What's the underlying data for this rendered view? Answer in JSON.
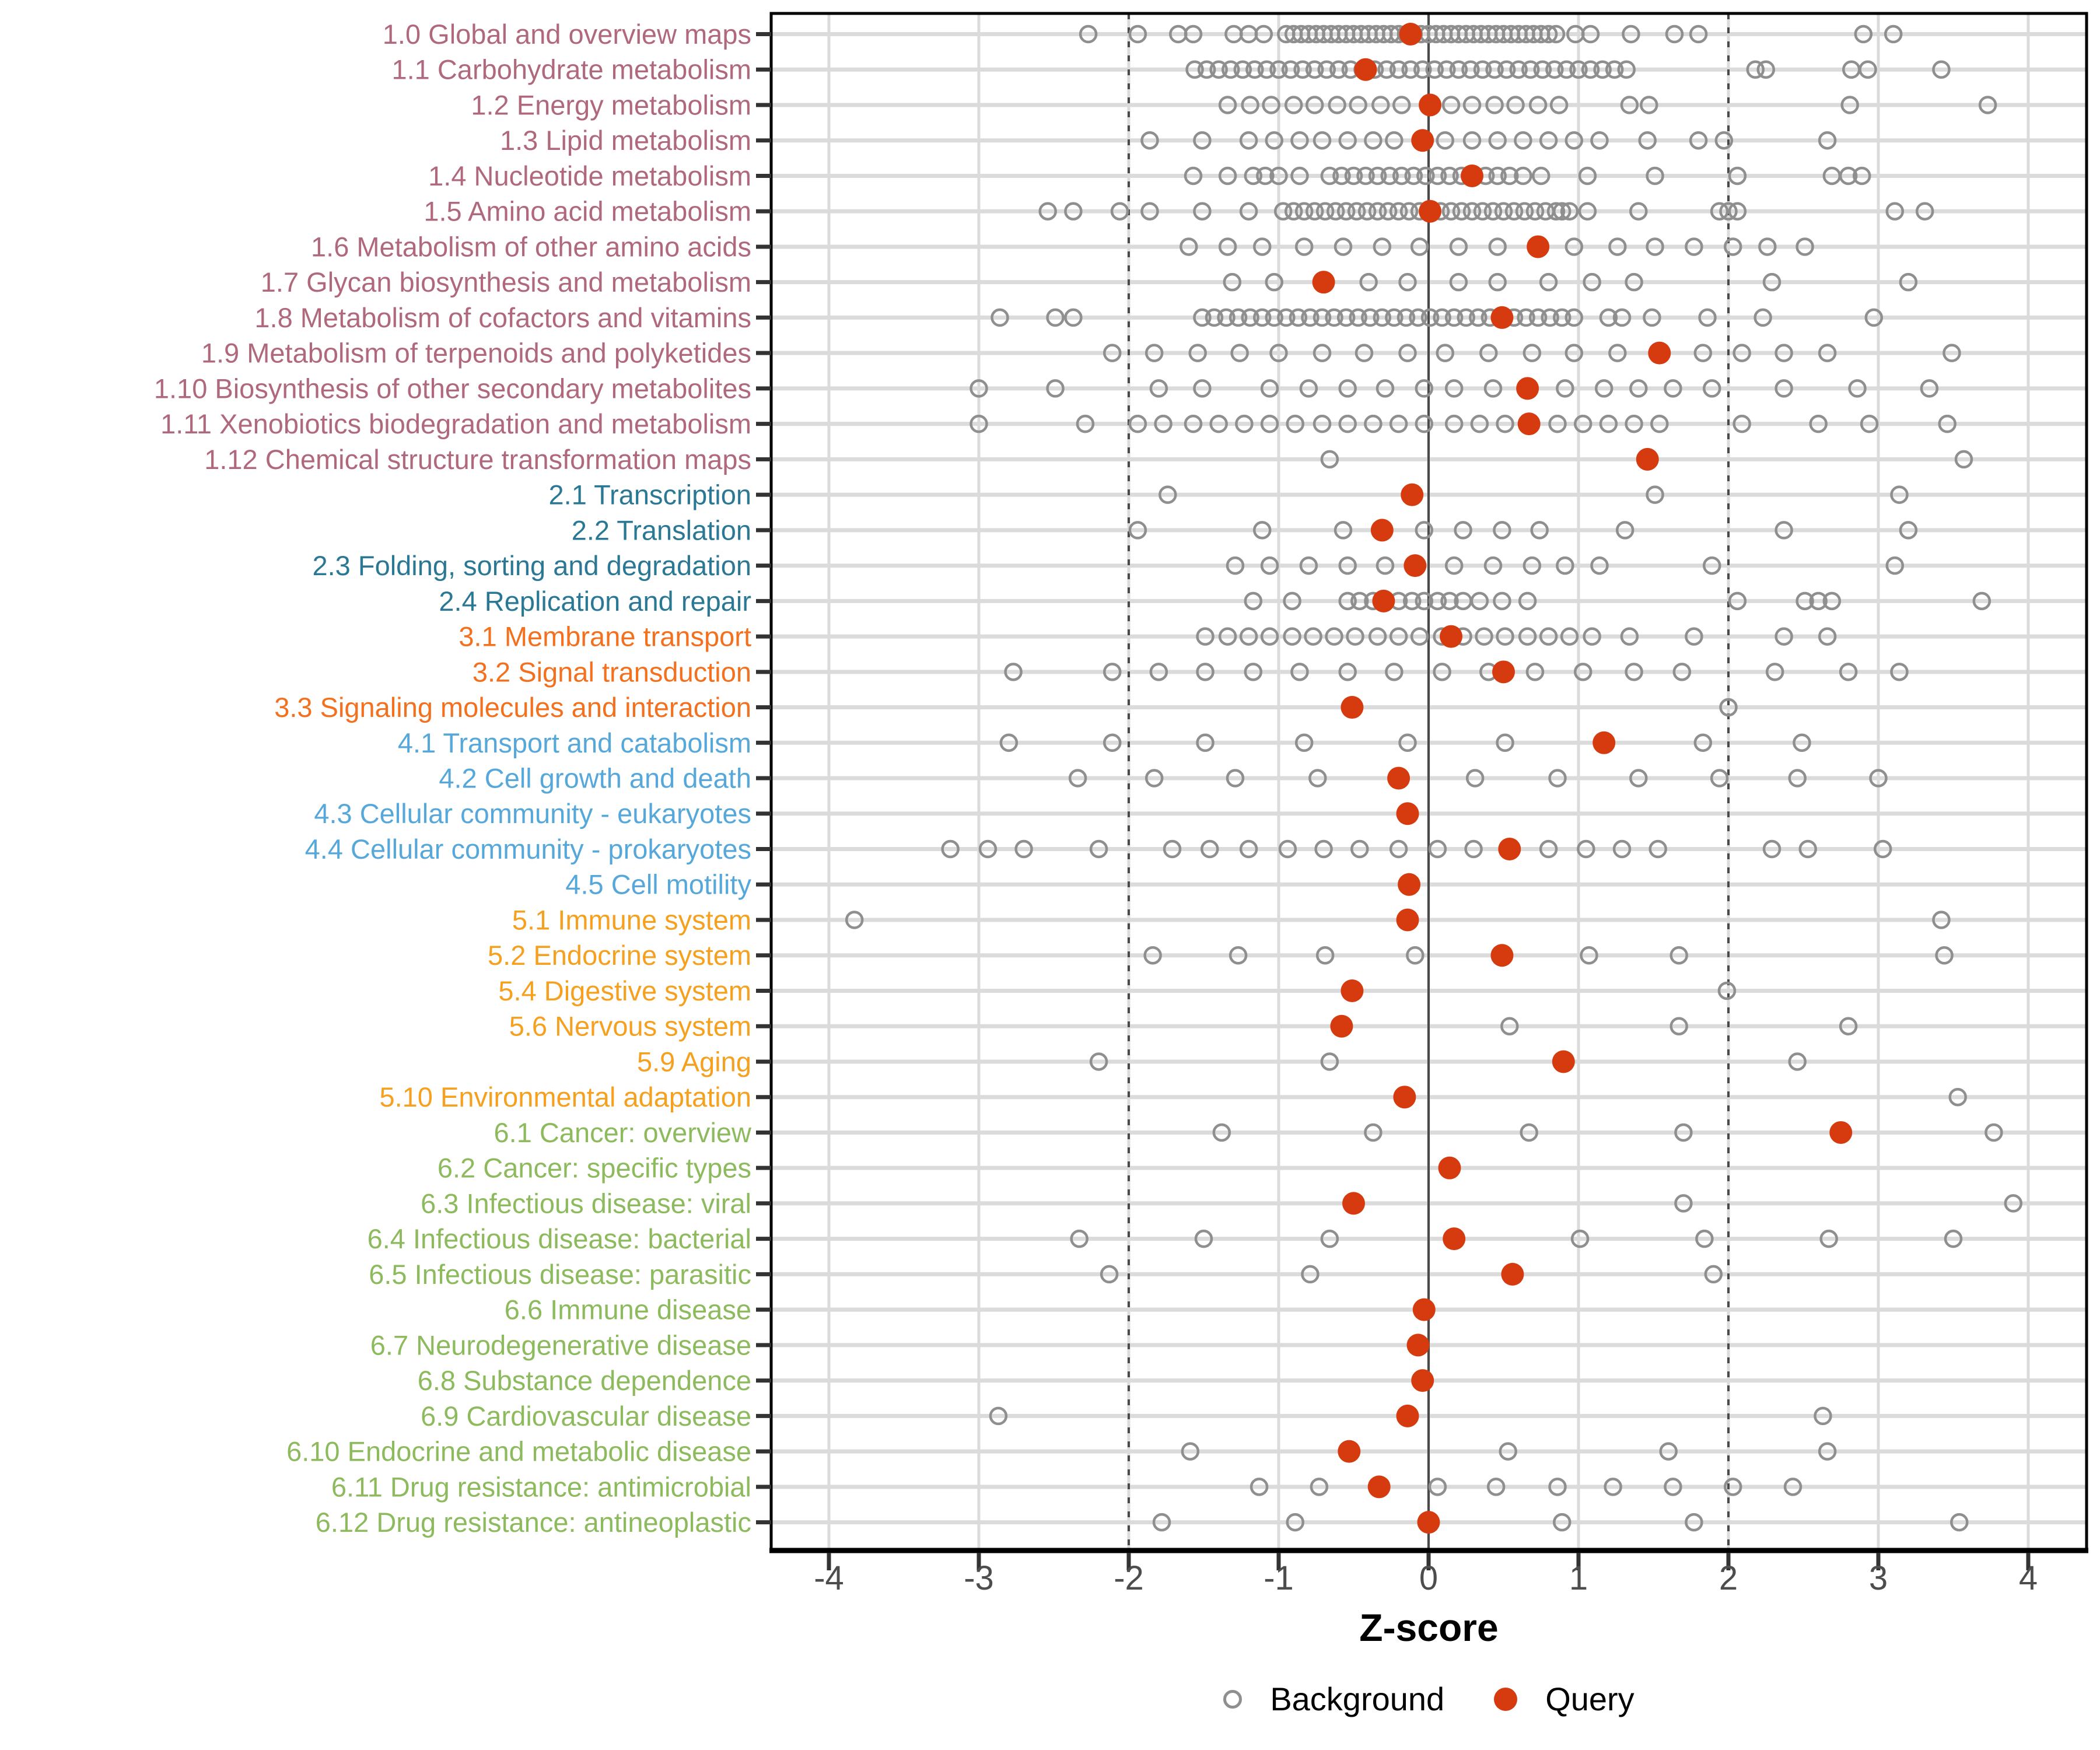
{
  "chart_data": {
    "type": "scatter",
    "title": "",
    "xlabel": "Z-score",
    "ylabel": "",
    "xlim": [
      -4.39,
      4.39
    ],
    "x_ticks": [
      -4,
      -3,
      -2,
      -1,
      0,
      1,
      2,
      3,
      4
    ],
    "grid": "major-x and per-row horizontal lines",
    "ref_lines": {
      "zero_line": 0,
      "dashed_thresholds": [
        -2,
        2
      ]
    },
    "legend_position": "bottom",
    "legend": [
      {
        "label": "Background",
        "marker": "open-gray-circle"
      },
      {
        "label": "Query",
        "marker": "filled-red-circle"
      }
    ],
    "colors": {
      "query": "#D63B10",
      "background_marker": "#8F8F8F",
      "grid": "#DBDBDB",
      "ref_line": "#4A4A4A",
      "tick_label": "#4D4D4D",
      "panel_border": "#000000",
      "group_1_metabolism": "#B0697C",
      "group_2_genetic_information_processing": "#2B7895",
      "group_3_environmental_information_processing": "#F3701E",
      "group_4_cellular_processes": "#56A8DB",
      "group_5_organismal_systems": "#F5A01E",
      "group_6_human_diseases": "#8CBA5C"
    },
    "rows": [
      {
        "label": "1.0 Global and overview maps",
        "group": "1",
        "query": -0.12,
        "background": [
          -2.27,
          -1.94,
          -1.67,
          -1.57,
          -1.3,
          -1.2,
          -1.1,
          -0.95,
          -0.9,
          -0.85,
          -0.8,
          -0.75,
          -0.7,
          -0.65,
          -0.6,
          -0.55,
          -0.5,
          -0.45,
          -0.4,
          -0.35,
          -0.3,
          -0.25,
          -0.2,
          -0.15,
          -0.1,
          -0.05,
          0,
          0.05,
          0.1,
          0.15,
          0.2,
          0.25,
          0.3,
          0.35,
          0.4,
          0.45,
          0.5,
          0.55,
          0.6,
          0.65,
          0.7,
          0.75,
          0.8,
          0.85,
          0.98,
          1.08,
          1.35,
          1.64,
          1.8,
          2.9,
          3.1
        ]
      },
      {
        "label": "1.1 Carbohydrate metabolism",
        "group": "1",
        "query": -0.42,
        "background": [
          -1.56,
          -1.48,
          -1.4,
          -1.32,
          -1.24,
          -1.16,
          -1.08,
          -1,
          -0.92,
          -0.84,
          -0.76,
          -0.68,
          -0.6,
          -0.52,
          -0.44,
          -0.36,
          -0.28,
          -0.2,
          -0.12,
          -0.04,
          0.04,
          0.12,
          0.2,
          0.28,
          0.36,
          0.44,
          0.52,
          0.6,
          0.68,
          0.76,
          0.84,
          0.92,
          1,
          1.08,
          1.16,
          1.24,
          1.32,
          2.18,
          2.25,
          2.82,
          2.93,
          3.42
        ]
      },
      {
        "label": "1.2 Energy metabolism",
        "group": "1",
        "query": 0.01,
        "background": [
          -1.34,
          -1.19,
          -1.05,
          -0.9,
          -0.76,
          -0.61,
          -0.47,
          -0.32,
          -0.18,
          0.15,
          0.29,
          0.44,
          0.58,
          0.73,
          0.87,
          1.34,
          1.47,
          2.81,
          3.73
        ]
      },
      {
        "label": "1.3 Lipid metabolism",
        "group": "1",
        "query": -0.04,
        "background": [
          -1.86,
          -1.51,
          -1.2,
          -1.03,
          -0.86,
          -0.71,
          -0.54,
          -0.37,
          -0.23,
          0.11,
          0.29,
          0.46,
          0.63,
          0.8,
          0.97,
          1.14,
          1.46,
          1.8,
          1.97,
          2.66
        ]
      },
      {
        "label": "1.4 Nucleotide metabolism",
        "group": "1",
        "query": 0.29,
        "background": [
          -1.57,
          -1.34,
          -1.17,
          -1.09,
          -1,
          -0.86,
          -0.66,
          -0.58,
          -0.5,
          -0.42,
          -0.34,
          -0.26,
          -0.18,
          -0.1,
          -0.02,
          0.06,
          0.14,
          0.22,
          0.38,
          0.46,
          0.54,
          0.63,
          0.75,
          1.06,
          1.51,
          2.06,
          2.69,
          2.8,
          2.89
        ]
      },
      {
        "label": "1.5 Amino acid metabolism",
        "group": "1",
        "query": 0.01,
        "background": [
          -2.54,
          -2.37,
          -2.06,
          -1.86,
          -1.51,
          -1.2,
          -0.97,
          -0.9,
          -0.83,
          -0.76,
          -0.69,
          -0.62,
          -0.55,
          -0.48,
          -0.41,
          -0.34,
          -0.27,
          -0.2,
          -0.13,
          -0.06,
          0.01,
          0.08,
          0.15,
          0.22,
          0.29,
          0.36,
          0.43,
          0.5,
          0.57,
          0.64,
          0.71,
          0.78,
          0.85,
          0.89,
          0.94,
          1.06,
          1.4,
          1.94,
          2,
          2.06,
          3.11,
          3.31
        ]
      },
      {
        "label": "1.6 Metabolism of other amino acids",
        "group": "1",
        "query": 0.73,
        "background": [
          -1.6,
          -1.34,
          -1.11,
          -0.83,
          -0.57,
          -0.31,
          -0.06,
          0.2,
          0.46,
          0.97,
          1.26,
          1.51,
          1.77,
          2.03,
          2.26,
          2.51
        ]
      },
      {
        "label": "1.7 Glycan biosynthesis and metabolism",
        "group": "1",
        "query": -0.7,
        "background": [
          -1.31,
          -1.03,
          -0.4,
          -0.14,
          0.2,
          0.46,
          0.8,
          1.09,
          1.37,
          2.29,
          3.2
        ]
      },
      {
        "label": "1.8 Metabolism of cofactors and vitamins",
        "group": "1",
        "query": 0.49,
        "background": [
          -2.86,
          -2.49,
          -2.37,
          -1.51,
          -1.43,
          -1.35,
          -1.27,
          -1.19,
          -1.11,
          -1.03,
          -0.95,
          -0.87,
          -0.79,
          -0.71,
          -0.63,
          -0.55,
          -0.47,
          -0.39,
          -0.31,
          -0.23,
          -0.15,
          -0.07,
          0.01,
          0.09,
          0.17,
          0.25,
          0.33,
          0.41,
          0.57,
          0.65,
          0.73,
          0.81,
          0.89,
          0.97,
          1.2,
          1.29,
          1.49,
          1.86,
          2.23,
          2.97
        ]
      },
      {
        "label": "1.9 Metabolism of terpenoids and polyketides",
        "group": "1",
        "query": 1.54,
        "background": [
          -2.11,
          -1.83,
          -1.54,
          -1.26,
          -1,
          -0.71,
          -0.43,
          -0.14,
          0.11,
          0.4,
          0.69,
          0.97,
          1.26,
          1.83,
          2.09,
          2.37,
          2.66,
          3.49
        ]
      },
      {
        "label": "1.10 Biosynthesis of other secondary metabolites",
        "group": "1",
        "query": 0.66,
        "background": [
          -3,
          -2.49,
          -1.8,
          -1.51,
          -1.06,
          -0.8,
          -0.54,
          -0.29,
          -0.03,
          0.17,
          0.43,
          0.91,
          1.17,
          1.4,
          1.63,
          1.89,
          2.37,
          2.86,
          3.34
        ]
      },
      {
        "label": "1.11 Xenobiotics biodegradation and metabolism",
        "group": "1",
        "query": 0.67,
        "background": [
          -3,
          -2.29,
          -1.94,
          -1.77,
          -1.57,
          -1.4,
          -1.23,
          -1.06,
          -0.89,
          -0.71,
          -0.54,
          -0.37,
          -0.2,
          -0.03,
          0.17,
          0.34,
          0.51,
          0.86,
          1.03,
          1.2,
          1.37,
          1.54,
          2.09,
          2.6,
          2.94,
          3.46
        ]
      },
      {
        "label": "1.12 Chemical structure transformation maps",
        "group": "1",
        "query": 1.46,
        "background": [
          -0.66,
          3.57
        ]
      },
      {
        "label": "2.1 Transcription",
        "group": "2",
        "query": -0.11,
        "background": [
          -1.74,
          1.51,
          3.14
        ]
      },
      {
        "label": "2.2 Translation",
        "group": "2",
        "query": -0.31,
        "background": [
          -1.94,
          -1.11,
          -0.57,
          -0.03,
          0.23,
          0.49,
          0.74,
          1.31,
          2.37,
          3.2
        ]
      },
      {
        "label": "2.3 Folding, sorting and degradation",
        "group": "2",
        "query": -0.09,
        "background": [
          -1.29,
          -1.06,
          -0.8,
          -0.54,
          -0.29,
          0.17,
          0.43,
          0.69,
          0.91,
          1.14,
          1.89,
          3.11
        ]
      },
      {
        "label": "2.4 Replication and repair",
        "group": "2",
        "query": -0.3,
        "background": [
          -1.17,
          -0.91,
          -0.54,
          -0.46,
          -0.37,
          -0.2,
          -0.11,
          -0.03,
          0.06,
          0.14,
          0.23,
          0.34,
          0.49,
          0.66,
          2.06,
          2.51,
          2.6,
          2.69,
          3.69
        ]
      },
      {
        "label": "3.1 Membrane transport",
        "group": "3",
        "query": 0.15,
        "background": [
          -1.49,
          -1.34,
          -1.2,
          -1.06,
          -0.91,
          -0.77,
          -0.63,
          -0.49,
          -0.34,
          -0.2,
          -0.06,
          0.09,
          0.23,
          0.37,
          0.51,
          0.66,
          0.8,
          0.94,
          1.09,
          1.34,
          1.77,
          2.37,
          2.66
        ]
      },
      {
        "label": "3.2 Signal transduction",
        "group": "3",
        "query": 0.5,
        "background": [
          -2.77,
          -2.11,
          -1.8,
          -1.49,
          -1.17,
          -0.86,
          -0.54,
          -0.23,
          0.09,
          0.4,
          0.71,
          1.03,
          1.37,
          1.69,
          2.31,
          2.8,
          3.14
        ]
      },
      {
        "label": "3.3 Signaling molecules and interaction",
        "group": "3",
        "query": -0.51,
        "background": [
          2
        ]
      },
      {
        "label": "4.1 Transport and catabolism",
        "group": "4",
        "query": 1.17,
        "background": [
          -2.8,
          -2.11,
          -1.49,
          -0.83,
          -0.14,
          0.51,
          1.83,
          2.49
        ]
      },
      {
        "label": "4.2 Cell growth and death",
        "group": "4",
        "query": -0.2,
        "background": [
          -2.34,
          -1.83,
          -1.29,
          -0.74,
          0.31,
          0.86,
          1.4,
          1.94,
          2.46,
          3
        ]
      },
      {
        "label": "4.3 Cellular community - eukaryotes",
        "group": "4",
        "query": -0.14,
        "background": []
      },
      {
        "label": "4.4 Cellular community - prokaryotes",
        "group": "4",
        "query": 0.54,
        "background": [
          -3.19,
          -2.94,
          -2.7,
          -2.2,
          -1.71,
          -1.46,
          -1.2,
          -0.94,
          -0.7,
          -0.46,
          -0.2,
          0.06,
          0.3,
          0.8,
          1.05,
          1.29,
          1.53,
          2.29,
          2.53,
          3.03
        ]
      },
      {
        "label": "4.5 Cell motility",
        "group": "4",
        "query": -0.13,
        "background": []
      },
      {
        "label": "5.1 Immune system",
        "group": "5",
        "query": -0.14,
        "background": [
          -3.83,
          3.42
        ]
      },
      {
        "label": "5.2 Endocrine system",
        "group": "5",
        "query": 0.49,
        "background": [
          -1.84,
          -1.27,
          -0.69,
          -0.09,
          1.07,
          1.67,
          3.44
        ]
      },
      {
        "label": "5.4 Digestive system",
        "group": "5",
        "query": -0.51,
        "background": [
          1.99
        ]
      },
      {
        "label": "5.6 Nervous system",
        "group": "5",
        "query": -0.58,
        "background": [
          0.54,
          1.67,
          2.8
        ]
      },
      {
        "label": "5.9 Aging",
        "group": "5",
        "query": 0.9,
        "background": [
          -2.2,
          -0.66,
          2.46
        ]
      },
      {
        "label": "5.10 Environmental adaptation",
        "group": "5",
        "query": -0.16,
        "background": [
          3.53
        ]
      },
      {
        "label": "6.1 Cancer: overview",
        "group": "6",
        "query": 2.75,
        "background": [
          -1.38,
          -0.37,
          0.67,
          1.7,
          3.77
        ]
      },
      {
        "label": "6.2 Cancer: specific types",
        "group": "6",
        "query": 0.14,
        "background": []
      },
      {
        "label": "6.3 Infectious disease: viral",
        "group": "6",
        "query": -0.5,
        "background": [
          1.7,
          3.9
        ]
      },
      {
        "label": "6.4 Infectious disease: bacterial",
        "group": "6",
        "query": 0.17,
        "background": [
          -2.33,
          -1.5,
          -0.66,
          1.01,
          1.84,
          2.67,
          3.5
        ]
      },
      {
        "label": "6.5 Infectious disease: parasitic",
        "group": "6",
        "query": 0.56,
        "background": [
          -2.13,
          -0.79,
          1.9
        ]
      },
      {
        "label": "6.6 Immune disease",
        "group": "6",
        "query": -0.03,
        "background": []
      },
      {
        "label": "6.7 Neurodegenerative disease",
        "group": "6",
        "query": -0.07,
        "background": []
      },
      {
        "label": "6.8 Substance dependence",
        "group": "6",
        "query": -0.04,
        "background": []
      },
      {
        "label": "6.9 Cardiovascular disease",
        "group": "6",
        "query": -0.14,
        "background": [
          -2.87,
          2.63
        ]
      },
      {
        "label": "6.10 Endocrine and metabolic disease",
        "group": "6",
        "query": -0.53,
        "background": [
          -1.59,
          0.53,
          1.6,
          2.66
        ]
      },
      {
        "label": "6.11 Drug resistance: antimicrobial",
        "group": "6",
        "query": -0.33,
        "background": [
          -1.13,
          -0.73,
          0.06,
          0.45,
          0.86,
          1.23,
          1.63,
          2.03,
          2.43
        ]
      },
      {
        "label": "6.12 Drug resistance: antineoplastic",
        "group": "6",
        "query": 0,
        "background": [
          -1.78,
          -0.89,
          0.89,
          1.77,
          3.54
        ]
      }
    ]
  }
}
